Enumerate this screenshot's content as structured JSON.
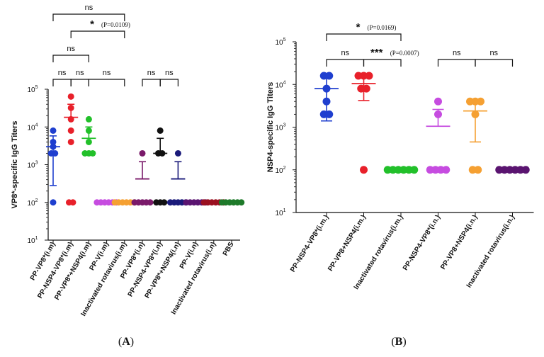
{
  "chart_data": [
    {
      "type": "scatter",
      "panel_label": "A",
      "caption": "(A)",
      "ylabel": "VP8*-specific IgG Titers",
      "yscale": "log",
      "ylim": [
        10,
        100000
      ],
      "yticks": [
        "10^1",
        "10^2",
        "10^3",
        "10^4",
        "10^5"
      ],
      "categories": [
        "PP-VP8*(i.m)",
        "PP-NSP4-VP8*(i.m)",
        "PP-VP8*+NSP4(i.m)",
        "PP-V(i.m)",
        "Inactivated rotavirus(i.m)",
        "PP-VP8*(i.n)",
        "PP-NSP4-VP8*(i.n)",
        "PP-VP8*+NSP4(i.n)",
        "PP-V(i.n)",
        "Inactivated rotavirus(i.n)",
        "PBS"
      ],
      "colors": [
        "#1f3fcf",
        "#e8202a",
        "#22c02a",
        "#c64ce0",
        "#f5a032",
        "#7a1a6a",
        "#111111",
        "#1a1a7a",
        "#5a1470",
        "#9a1020",
        "#1e7a2a"
      ],
      "series": [
        {
          "name": "PP-VP8*(i.m)",
          "points": [
            8000,
            4000,
            3000,
            2000,
            2000,
            100
          ],
          "mean": 3000,
          "err_low": 280,
          "err_high": 5800
        },
        {
          "name": "PP-NSP4-VP8*(i.m)",
          "points": [
            64000,
            32000,
            16000,
            8000,
            4000,
            100,
            100
          ],
          "mean": 18000,
          "err_low": null,
          "err_high": 40000
        },
        {
          "name": "PP-VP8*+NSP4(i.m)",
          "points": [
            16000,
            8000,
            4000,
            2000,
            2000,
            2000
          ],
          "mean": 5000,
          "err_low": null,
          "err_high": 10000
        },
        {
          "name": "PP-V(i.m)",
          "points": [
            100,
            100,
            100,
            100,
            100,
            100
          ],
          "mean": 100,
          "err_low": null,
          "err_high": null
        },
        {
          "name": "Inactivated rotavirus(i.m)",
          "points": [
            100,
            100,
            100,
            100,
            100,
            100
          ],
          "mean": 100,
          "err_low": null,
          "err_high": null
        },
        {
          "name": "PP-VP8*(i.n)",
          "points": [
            2000,
            100,
            100,
            100,
            100,
            100
          ],
          "mean": 420,
          "err_low": null,
          "err_high": 1200
        },
        {
          "name": "PP-NSP4-VP8*(i.n)",
          "points": [
            8000,
            2000,
            2000,
            100,
            100,
            100
          ],
          "mean": 2000,
          "err_low": null,
          "err_high": 5000
        },
        {
          "name": "PP-VP8*+NSP4(i.n)",
          "points": [
            2000,
            100,
            100,
            100,
            100,
            100
          ],
          "mean": 420,
          "err_low": null,
          "err_high": 1200
        },
        {
          "name": "PP-V(i.n)",
          "points": [
            100,
            100,
            100,
            100,
            100,
            100
          ],
          "mean": 100,
          "err_low": null,
          "err_high": null
        },
        {
          "name": "Inactivated rotavirus(i.n)",
          "points": [
            100,
            100,
            100,
            100,
            100,
            100
          ],
          "mean": 100,
          "err_low": null,
          "err_high": null
        },
        {
          "name": "PBS",
          "points": [
            100,
            100,
            100,
            100,
            100,
            100
          ],
          "mean": 100,
          "err_low": null,
          "err_high": null
        }
      ],
      "comparisons": [
        {
          "from": 0,
          "to": 4,
          "label": "ns",
          "level": 0
        },
        {
          "from": 1,
          "to": 4,
          "label": "*",
          "p_value": "(P=0.0109)",
          "level": 1
        },
        {
          "from": 0,
          "to": 2,
          "label": "ns",
          "level": 2
        },
        {
          "from": 0,
          "to": 1,
          "label": "ns",
          "level": 3
        },
        {
          "from": 1,
          "to": 2,
          "label": "ns",
          "level": 3
        },
        {
          "from": 2,
          "to": 4,
          "label": "ns",
          "level": 3
        },
        {
          "from": 5,
          "to": 6,
          "label": "ns",
          "level": 3
        },
        {
          "from": 6,
          "to": 7,
          "label": "ns",
          "level": 3
        }
      ]
    },
    {
      "type": "scatter",
      "panel_label": "B",
      "caption": "(B)",
      "ylabel": "NSP4-specific IgG Titers",
      "yscale": "log",
      "ylim": [
        10,
        100000
      ],
      "yticks": [
        "10^1",
        "10^2",
        "10^3",
        "10^4",
        "10^5"
      ],
      "categories": [
        "PP-NSP4-VP8*(i.m.)",
        "PP-VP8+NSP4(i.m.)",
        "Inactivated rotavirus(i.m.)",
        "PP-NSP4-VP8*(i.n.)",
        "PP-VP8+NSP4(i.n.)",
        "Inactivated rotavirus(i.n.)"
      ],
      "colors": [
        "#1f3fcf",
        "#e8202a",
        "#22c02a",
        "#c64ce0",
        "#f5a032",
        "#5a1470"
      ],
      "series": [
        {
          "name": "PP-NSP4-VP8*(i.m.)",
          "points": [
            16000,
            16000,
            8000,
            4000,
            2000,
            2000
          ],
          "mean": 8000,
          "err_low": 1400,
          "err_high": 15000
        },
        {
          "name": "PP-VP8+NSP4(i.m.)",
          "points": [
            16000,
            16000,
            16000,
            8000,
            8000,
            100
          ],
          "mean": 10500,
          "err_low": 4200,
          "err_high": 16000
        },
        {
          "name": "Inactivated rotavirus(i.m.)",
          "points": [
            100,
            100,
            100,
            100,
            100,
            100
          ],
          "mean": 100,
          "err_low": null,
          "err_high": null
        },
        {
          "name": "PP-NSP4-VP8*(i.n.)",
          "points": [
            4000,
            2000,
            100,
            100,
            100,
            100
          ],
          "mean": 1050,
          "err_low": null,
          "err_high": 2600
        },
        {
          "name": "PP-VP8+NSP4(i.n.)",
          "points": [
            4000,
            4000,
            2000,
            100,
            100,
            4000
          ],
          "mean": 2400,
          "err_low": 450,
          "err_high": 4000
        },
        {
          "name": "Inactivated rotavirus(i.n.)",
          "points": [
            100,
            100,
            100,
            100,
            100,
            100
          ],
          "mean": 100,
          "err_low": null,
          "err_high": null
        }
      ],
      "comparisons": [
        {
          "from": 0,
          "to": 2,
          "label": "*",
          "p_value": "(P=0.0169)",
          "level": 0
        },
        {
          "from": 0,
          "to": 1,
          "label": "ns",
          "level": 1
        },
        {
          "from": 1,
          "to": 2,
          "label": "***",
          "p_value": "(P=0.0007)",
          "level": 1
        },
        {
          "from": 3,
          "to": 4,
          "label": "ns",
          "level": 1
        },
        {
          "from": 4,
          "to": 5,
          "label": "ns",
          "level": 1
        }
      ]
    }
  ]
}
